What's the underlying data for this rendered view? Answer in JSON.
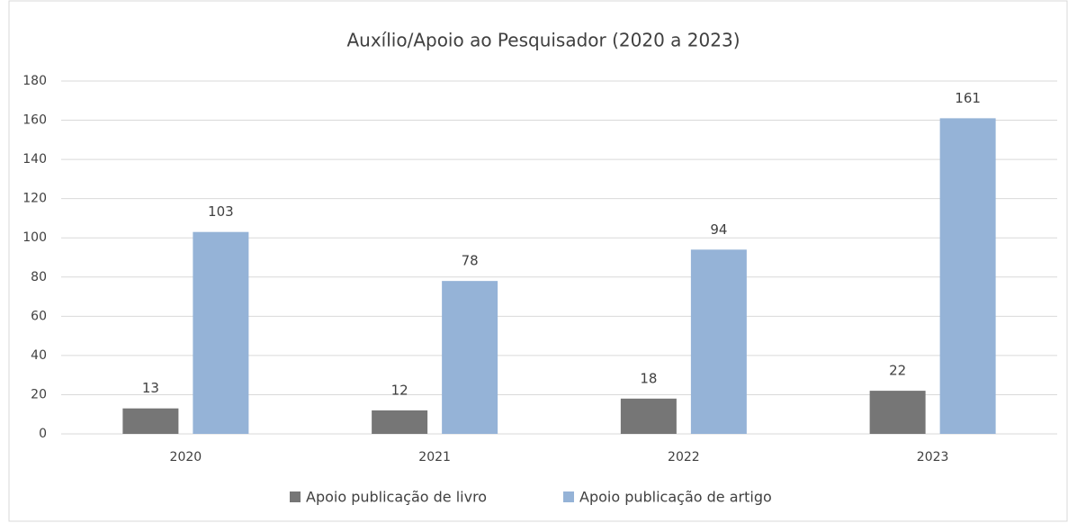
{
  "chart_data": {
    "type": "bar",
    "title": "Auxílio/Apoio ao Pesquisador (2020 a 2023)",
    "categories": [
      "2020",
      "2021",
      "2022",
      "2023"
    ],
    "series": [
      {
        "name": "Apoio publicação de livro",
        "color": "#767676",
        "values": [
          13,
          12,
          18,
          22
        ]
      },
      {
        "name": "Apoio publicação de artigo",
        "color": "#95b3d7",
        "values": [
          103,
          78,
          94,
          161
        ]
      }
    ],
    "ylim": [
      0,
      180
    ],
    "yticks": [
      0,
      20,
      40,
      60,
      80,
      100,
      120,
      140,
      160,
      180
    ],
    "grid": true,
    "legend": "bottom",
    "data_labels": true
  }
}
